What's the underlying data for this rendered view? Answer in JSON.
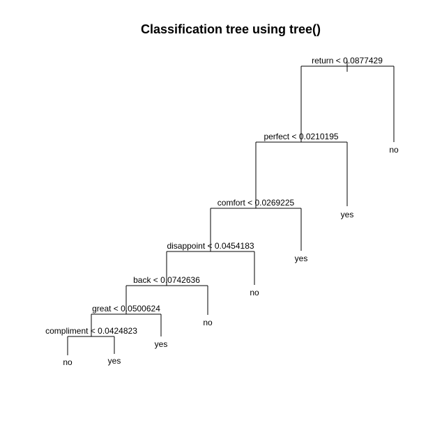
{
  "title": "Classification tree using tree()",
  "tree": {
    "splits": [
      {
        "id": "s1",
        "label": "return < 0.0877429"
      },
      {
        "id": "s2",
        "label": "perfect < 0.0210195"
      },
      {
        "id": "s3",
        "label": "comfort < 0.0269225"
      },
      {
        "id": "s4",
        "label": "disappoint < 0.0454183"
      },
      {
        "id": "s5",
        "label": "back < 0.0742636"
      },
      {
        "id": "s6",
        "label": "great < 0.0500624"
      },
      {
        "id": "s7",
        "label": "compliment < 0.0424823"
      }
    ],
    "leaves": [
      {
        "id": "l1",
        "label": "no"
      },
      {
        "id": "l2",
        "label": "yes"
      },
      {
        "id": "l3",
        "label": "yes"
      },
      {
        "id": "l4",
        "label": "no"
      },
      {
        "id": "l5",
        "label": "no"
      },
      {
        "id": "l6",
        "label": "yes"
      },
      {
        "id": "l7",
        "label": "no"
      },
      {
        "id": "l8",
        "label": "yes"
      }
    ]
  }
}
